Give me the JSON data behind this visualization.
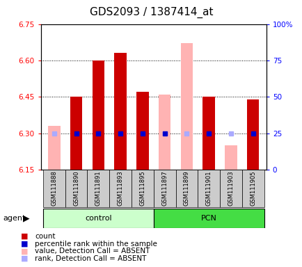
{
  "title": "GDS2093 / 1387414_at",
  "samples": [
    "GSM111888",
    "GSM111890",
    "GSM111891",
    "GSM111893",
    "GSM111895",
    "GSM111897",
    "GSM111899",
    "GSM111901",
    "GSM111903",
    "GSM111905"
  ],
  "groups": [
    "control",
    "control",
    "control",
    "control",
    "control",
    "PCN",
    "PCN",
    "PCN",
    "PCN",
    "PCN"
  ],
  "red_values": [
    null,
    6.45,
    6.6,
    6.63,
    6.47,
    null,
    null,
    6.45,
    null,
    6.44
  ],
  "pink_values": [
    6.33,
    null,
    null,
    null,
    null,
    6.46,
    6.67,
    null,
    6.25,
    null
  ],
  "blue_percentile": [
    null,
    25.0,
    25.0,
    25.0,
    25.0,
    25.0,
    null,
    25.0,
    null,
    25.0
  ],
  "light_blue_percentile": [
    25.0,
    null,
    null,
    null,
    null,
    25.0,
    25.0,
    null,
    25.0,
    null
  ],
  "ylim_left": [
    6.15,
    6.75
  ],
  "ylim_right": [
    0,
    100
  ],
  "yticks_left": [
    6.15,
    6.3,
    6.45,
    6.6,
    6.75
  ],
  "yticks_right": [
    0,
    25,
    50,
    75,
    100
  ],
  "bar_width": 0.55,
  "red_color": "#cc0000",
  "pink_color": "#ffb3b3",
  "blue_color": "#0000cc",
  "light_blue_color": "#aaaaff",
  "control_bg": "#ccffcc",
  "pcn_bg": "#44dd44",
  "sample_bg": "#cccccc",
  "title_fontsize": 11,
  "tick_fontsize": 7.5,
  "legend_fontsize": 7.5
}
